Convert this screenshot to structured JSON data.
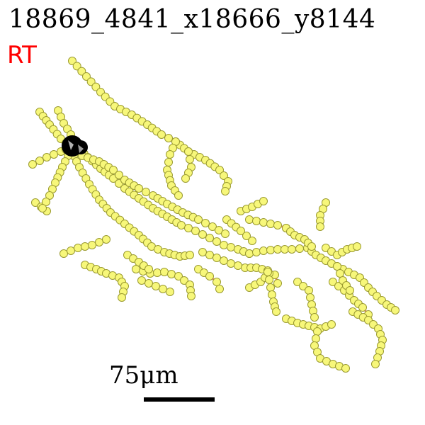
{
  "header": {
    "title": "18869_4841_x18666_y8144",
    "region_label": "RT",
    "region_color": "#ff0000"
  },
  "scale": {
    "label": "75μm"
  },
  "colors": {
    "neurite": "#f08070",
    "node_fill": "#f7f77a",
    "node_stroke": "#9a9a30",
    "soma": "#000000"
  }
}
